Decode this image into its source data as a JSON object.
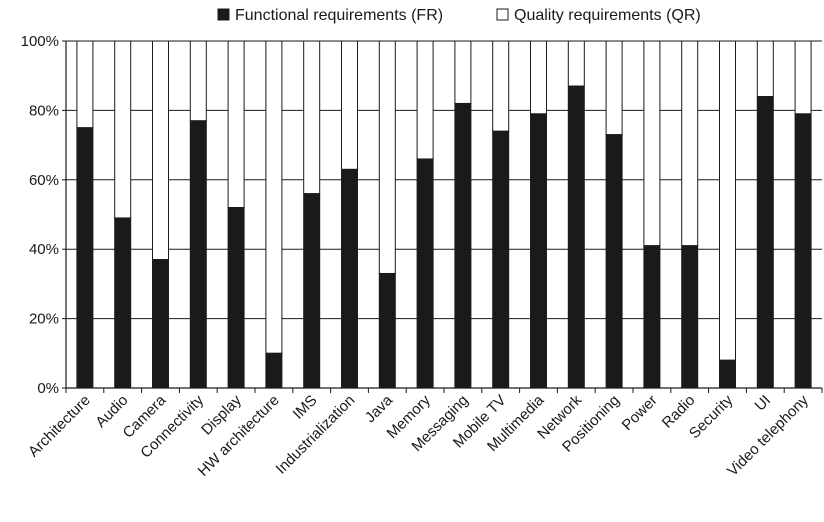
{
  "chart_data": {
    "type": "bar",
    "stacked": true,
    "title": "",
    "xlabel": "",
    "ylabel": "",
    "ylim": [
      0,
      100
    ],
    "yticks": [
      0,
      20,
      40,
      60,
      80,
      100
    ],
    "ytick_labels": [
      "0%",
      "20%",
      "40%",
      "60%",
      "80%",
      "100%"
    ],
    "grid": true,
    "legend_position": "top",
    "categories": [
      "Architecture",
      "Audio",
      "Camera",
      "Connectivity",
      "Display",
      "HW architecture",
      "IMS",
      "Industrialization",
      "Java",
      "Memory",
      "Messaging",
      "Mobile TV",
      "Multimedia",
      "Network",
      "Positioning",
      "Power",
      "Radio",
      "Security",
      "UI",
      "Video telephony"
    ],
    "series": [
      {
        "name": "Functional requirements (FR)",
        "color": "#1a1a1a",
        "values": [
          75,
          49,
          37,
          77,
          52,
          10,
          56,
          63,
          33,
          66,
          82,
          74,
          79,
          87,
          73,
          41,
          41,
          8,
          84,
          79
        ]
      },
      {
        "name": "Quality requirements (QR)",
        "color": "#ffffff",
        "values": [
          25,
          51,
          63,
          23,
          48,
          90,
          44,
          37,
          67,
          34,
          18,
          26,
          21,
          13,
          27,
          59,
          59,
          92,
          16,
          21
        ]
      }
    ]
  }
}
